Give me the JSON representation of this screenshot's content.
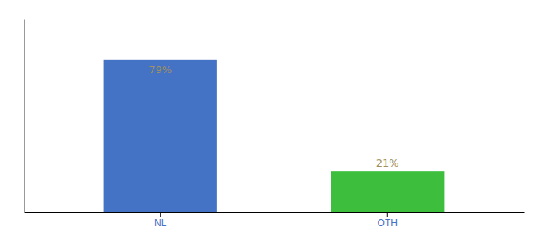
{
  "chart_data": {
    "type": "bar",
    "categories": [
      "NL",
      "OTH"
    ],
    "values": [
      79,
      21
    ],
    "value_labels": [
      "79%",
      "21%"
    ],
    "colors": [
      "#4472c4",
      "#3dbf3d"
    ],
    "ylim": [
      0,
      100
    ],
    "data_labels": true,
    "tick_labels": "x",
    "grid": false
  }
}
